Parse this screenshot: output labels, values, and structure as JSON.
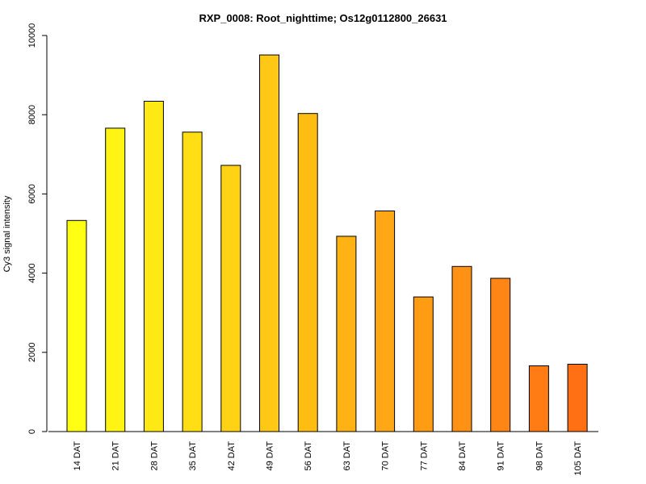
{
  "chart_data": {
    "type": "bar",
    "title": "RXP_0008: Root_nighttime; Os12g0112800_26631",
    "xlabel": "",
    "ylabel": "Cy3 signal intensity",
    "ylim": [
      0,
      10000
    ],
    "yticks": [
      0,
      2000,
      4000,
      6000,
      8000,
      10000
    ],
    "grid": false,
    "categories": [
      "14 DAT",
      "21 DAT",
      "28 DAT",
      "35 DAT",
      "42 DAT",
      "49 DAT",
      "56 DAT",
      "63 DAT",
      "70 DAT",
      "77 DAT",
      "84 DAT",
      "91 DAT",
      "98 DAT",
      "105 DAT"
    ],
    "values": [
      5330,
      7660,
      8340,
      7560,
      6720,
      9510,
      8030,
      4930,
      5570,
      3400,
      4170,
      3870,
      1660,
      1700
    ],
    "colors": [
      "#FFFF14",
      "#FFF414",
      "#FFE914",
      "#FFDE14",
      "#FFD314",
      "#FFC814",
      "#FFBD14",
      "#FFB214",
      "#FFA714",
      "#FF9C14",
      "#FF9114",
      "#FF8614",
      "#FF7B14",
      "#FF7014"
    ]
  }
}
